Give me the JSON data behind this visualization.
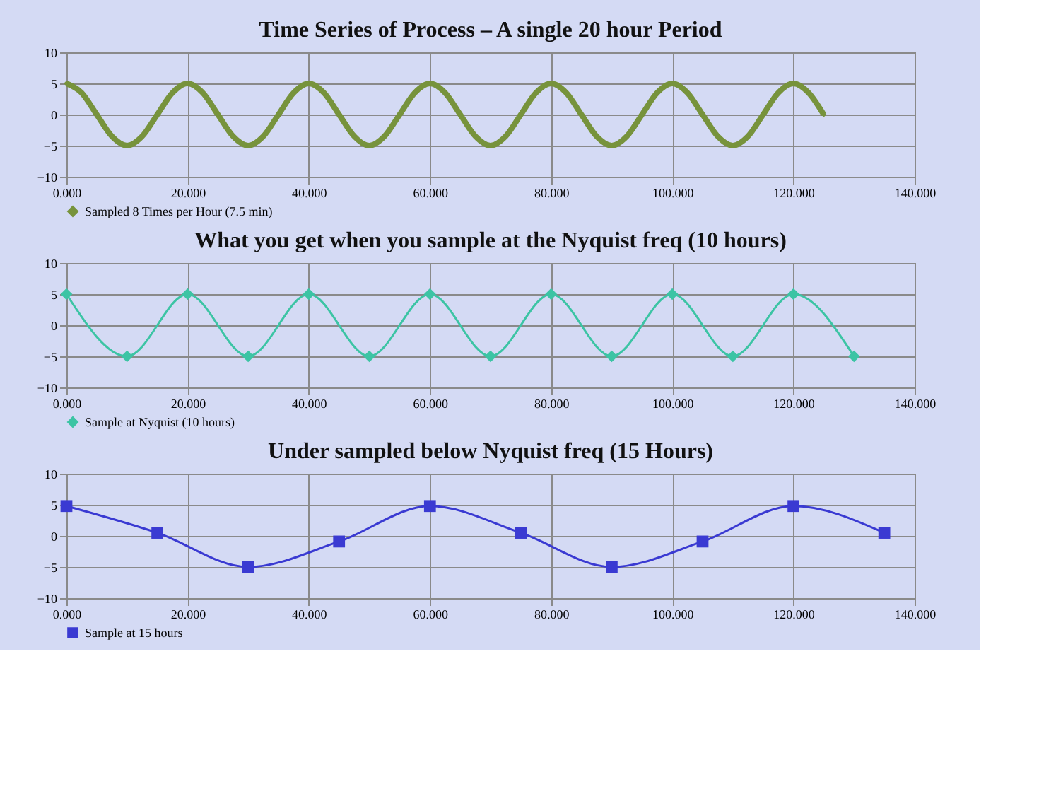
{
  "chart_data": [
    {
      "type": "line",
      "title": "Time Series of Process –  A single 20 hour Period",
      "x": [
        0,
        2.5,
        5,
        7.5,
        10,
        12.5,
        15,
        17.5,
        20,
        22.5,
        25,
        27.5,
        30,
        32.5,
        35,
        37.5,
        40,
        42.5,
        45,
        47.5,
        50,
        52.5,
        55,
        57.5,
        60,
        62.5,
        65,
        67.5,
        70,
        72.5,
        75,
        77.5,
        80,
        82.5,
        85,
        87.5,
        90,
        92.5,
        95,
        97.5,
        100,
        102.5,
        105,
        107.5,
        110,
        112.5,
        115,
        117.5,
        120,
        122.5,
        125
      ],
      "series": [
        {
          "name": "Sampled 8 Times per Hour (7.5 min)",
          "color": "#77933c",
          "values": [
            5,
            3.5,
            0,
            -3.5,
            -5,
            -3.5,
            0,
            3.5,
            5,
            3.5,
            0,
            -3.5,
            -5,
            -3.5,
            0,
            3.5,
            5,
            3.5,
            0,
            -3.5,
            -5,
            -3.5,
            0,
            3.5,
            5,
            3.5,
            0,
            -3.5,
            -5,
            -3.5,
            0,
            3.5,
            5,
            3.5,
            0,
            -3.5,
            -5,
            -3.5,
            0,
            3.5,
            5,
            3.5,
            0,
            -3.5,
            -5,
            -3.5,
            0,
            3.5,
            5,
            3.5,
            0
          ]
        }
      ],
      "xlim": [
        0,
        140
      ],
      "xticks": [
        {
          "value": 0,
          "label": "0.000"
        },
        {
          "value": 20,
          "label": "20.000"
        },
        {
          "value": 40,
          "label": "40.000"
        },
        {
          "value": 60,
          "label": "60.000"
        },
        {
          "value": 80,
          "label": "80.000"
        },
        {
          "value": 100,
          "label": "100.000"
        },
        {
          "value": 120,
          "label": "120.000"
        },
        {
          "value": 140,
          "label": "140.000"
        }
      ],
      "ylim": [
        -10,
        10
      ],
      "yticks": [
        -10,
        -5,
        0,
        5,
        10
      ],
      "grid": true,
      "legend": "bottom",
      "marker": "diamond",
      "line_style": "solid"
    },
    {
      "type": "line",
      "title": "What you get when you sample at the Nyquist freq (10 hours)",
      "x": [
        0,
        10,
        20,
        30,
        40,
        50,
        60,
        70,
        80,
        90,
        100,
        110,
        120,
        130
      ],
      "series": [
        {
          "name": "Sample at Nyquist (10 hours)",
          "color": "#3cc4a4",
          "values": [
            5,
            -5,
            5,
            -5,
            5,
            -5,
            5,
            -5,
            5,
            -5,
            5,
            -5,
            5,
            -5
          ]
        }
      ],
      "xlim": [
        0,
        140
      ],
      "xticks": [
        {
          "value": 0,
          "label": "0.000"
        },
        {
          "value": 20,
          "label": "20.000"
        },
        {
          "value": 40,
          "label": "40.000"
        },
        {
          "value": 60,
          "label": "60.000"
        },
        {
          "value": 80,
          "label": "80.000"
        },
        {
          "value": 100,
          "label": "100.000"
        },
        {
          "value": 120,
          "label": "120.000"
        },
        {
          "value": 140,
          "label": "140.000"
        }
      ],
      "ylim": [
        -10,
        10
      ],
      "yticks": [
        -10,
        -5,
        0,
        5,
        10
      ],
      "grid": true,
      "legend": "bottom",
      "marker": "diamond",
      "line_style": "solid"
    },
    {
      "type": "line",
      "title": "Under sampled below Nyquist freq (15 Hours)",
      "x": [
        0,
        15,
        30,
        45,
        60,
        75,
        90,
        105,
        120,
        135
      ],
      "series": [
        {
          "name": "Sample at 15 hours",
          "color": "#3a3ad2",
          "values": [
            4.8,
            0.5,
            -5,
            -0.9,
            4.8,
            0.5,
            -5,
            -0.9,
            4.8,
            0.5
          ]
        }
      ],
      "xlim": [
        0,
        140
      ],
      "xticks": [
        {
          "value": 0,
          "label": "0.000"
        },
        {
          "value": 20,
          "label": "20.000"
        },
        {
          "value": 40,
          "label": "40.000"
        },
        {
          "value": 60,
          "label": "60.000"
        },
        {
          "value": 80,
          "label": "80.000"
        },
        {
          "value": 100,
          "label": "100.000"
        },
        {
          "value": 120,
          "label": "120.000"
        },
        {
          "value": 140,
          "label": "140.000"
        }
      ],
      "ylim": [
        -10,
        10
      ],
      "yticks": [
        -10,
        -5,
        0,
        5,
        10
      ],
      "grid": true,
      "legend": "bottom",
      "marker": "square",
      "line_style": "solid"
    }
  ]
}
